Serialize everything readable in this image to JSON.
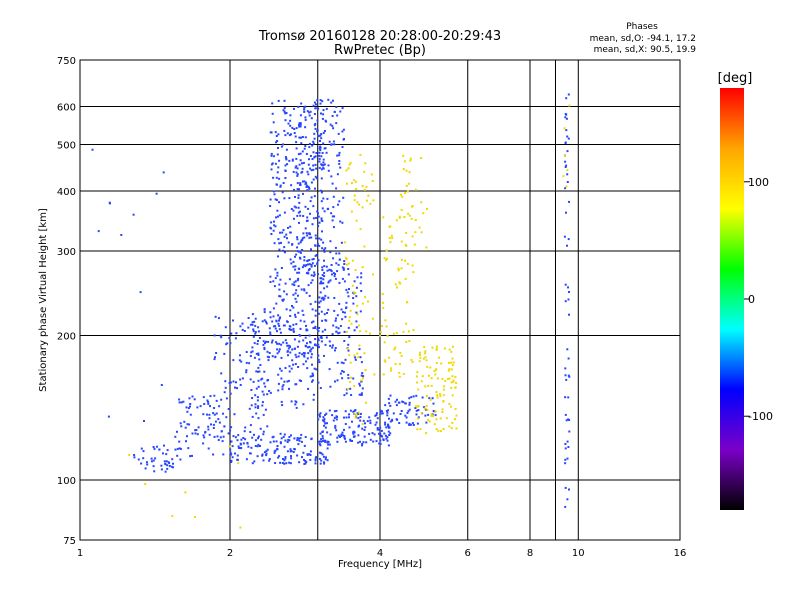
{
  "chart_data": {
    "type": "scatter",
    "title": "Tromsø 20160128 20:28:00-20:29:43",
    "subtitle": "RwPretec (Bp)",
    "xlabel": "Frequency [MHz]",
    "ylabel": "Stationary phase Virtual Height [km]",
    "xscale": "log",
    "yscale": "log",
    "xlim": [
      1,
      16
    ],
    "ylim": [
      75,
      750
    ],
    "xticks": [
      1,
      2,
      4,
      6,
      8,
      10,
      16
    ],
    "xtick_labels": [
      "1",
      "2",
      "4",
      "6",
      "8",
      "10",
      "16"
    ],
    "xgrid": [
      2,
      3,
      4,
      6,
      8,
      9,
      10
    ],
    "yticks": [
      75,
      100,
      200,
      300,
      400,
      500,
      600,
      750
    ],
    "ytick_labels": [
      "75",
      "100",
      "200",
      "300",
      "400",
      "500",
      "600",
      "750"
    ],
    "ygrid": [
      100,
      200,
      300,
      400,
      500,
      600
    ],
    "grid": true,
    "stats": {
      "heading": "Phases",
      "line1": "mean, sd,O: -94.1, 17.2",
      "line2": "mean, sd,X:  90.5, 19.9"
    },
    "colorbar": {
      "label": "[deg]",
      "range": [
        -180,
        180
      ],
      "ticks": [
        100,
        0,
        -100
      ],
      "tick_labels": [
        "100",
        "0",
        "-100"
      ],
      "colormap": "rainbow",
      "stops": [
        "#ff0000",
        "#ffa500",
        "#ffff00",
        "#00ff00",
        "#00ffff",
        "#0000ff",
        "#7a00c8",
        "#000000"
      ]
    },
    "series": [
      {
        "mode": "O",
        "color": "#2846ff",
        "regions": [
          {
            "x": [
              1.28,
              1.6
            ],
            "y": [
              104,
              118
            ],
            "n": 45
          },
          {
            "x": [
              1.55,
              1.95
            ],
            "y": [
              112,
              150
            ],
            "n": 70
          },
          {
            "x": [
              1.85,
              2.4
            ],
            "y": [
              120,
              220
            ],
            "n": 120
          },
          {
            "x": [
              2.0,
              3.2
            ],
            "y": [
              108,
              125
            ],
            "n": 160
          },
          {
            "x": [
              2.2,
              3.0
            ],
            "y": [
              140,
              230
            ],
            "n": 140
          },
          {
            "x": [
              2.4,
              3.1
            ],
            "y": [
              180,
              620
            ],
            "n": 420
          },
          {
            "x": [
              2.7,
              3.4
            ],
            "y": [
              260,
              620
            ],
            "n": 200
          },
          {
            "x": [
              3.0,
              4.2
            ],
            "y": [
              118,
              140
            ],
            "n": 150
          },
          {
            "x": [
              3.0,
              3.7
            ],
            "y": [
              150,
              280
            ],
            "n": 140
          },
          {
            "x": [
              4.0,
              5.2
            ],
            "y": [
              130,
              150
            ],
            "n": 60
          },
          {
            "x": [
              1.05,
              1.5
            ],
            "y": [
              110,
              560
            ],
            "n": 12
          },
          {
            "x": [
              9.4,
              9.6
            ],
            "y": [
              85,
              640
            ],
            "n": 55
          }
        ]
      },
      {
        "mode": "X",
        "color": "#f0d800",
        "regions": [
          {
            "x": [
              3.4,
              3.9
            ],
            "y": [
              130,
              480
            ],
            "n": 80
          },
          {
            "x": [
              4.0,
              4.7
            ],
            "y": [
              160,
              360
            ],
            "n": 70
          },
          {
            "x": [
              4.7,
              5.7
            ],
            "y": [
              125,
              190
            ],
            "n": 110
          },
          {
            "x": [
              4.4,
              5.0
            ],
            "y": [
              300,
              480
            ],
            "n": 30
          },
          {
            "x": [
              1.2,
              2.2
            ],
            "y": [
              78,
              120
            ],
            "n": 8
          },
          {
            "x": [
              9.3,
              9.6
            ],
            "y": [
              400,
              620
            ],
            "n": 6
          }
        ]
      }
    ]
  }
}
